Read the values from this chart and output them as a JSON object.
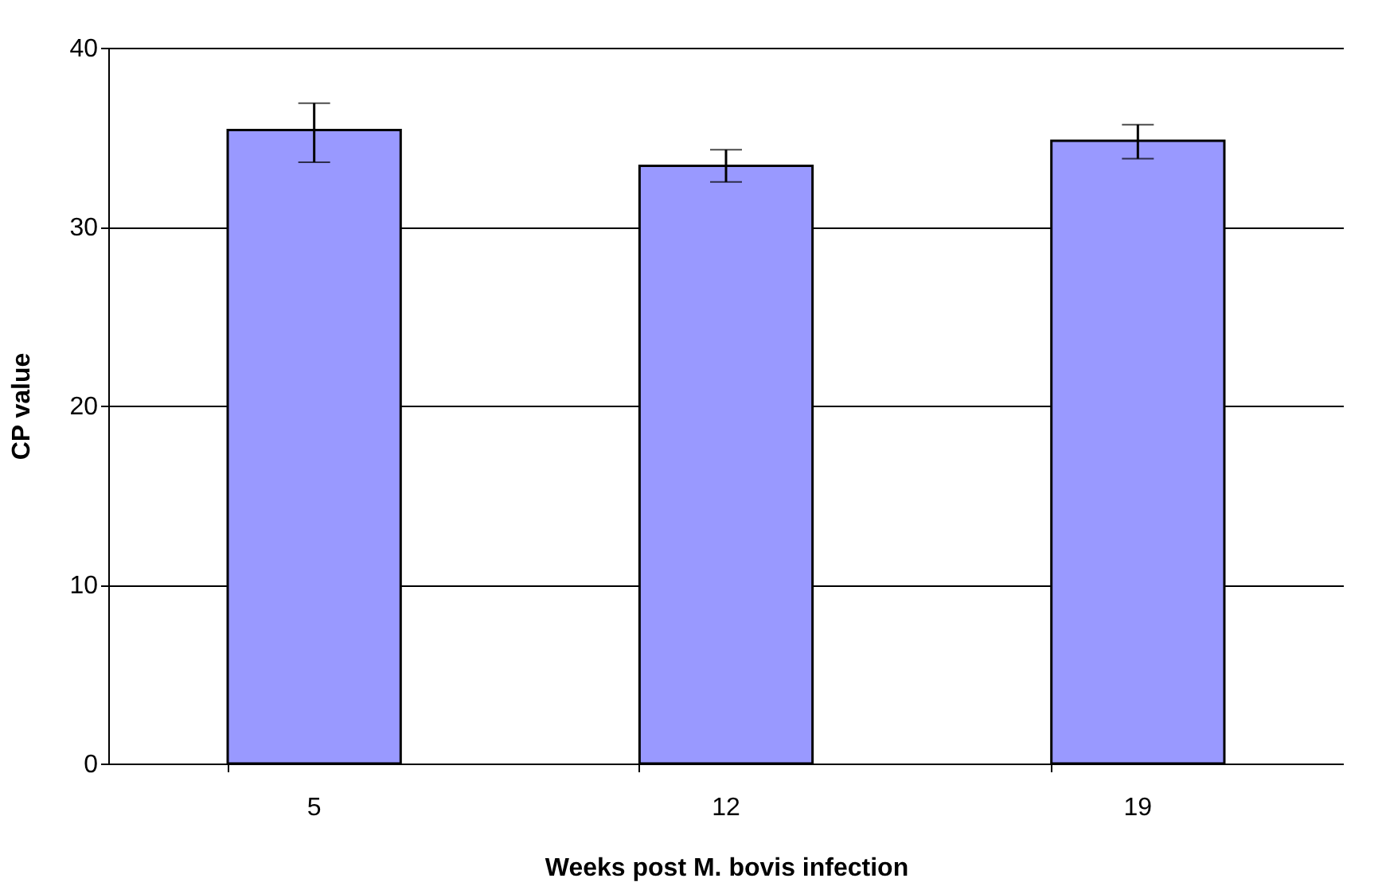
{
  "chart_data": {
    "type": "bar",
    "xlabel": "Weeks post M. bovis infection",
    "ylabel": "CP value",
    "categories": [
      "5",
      "12",
      "19"
    ],
    "values": [
      35.4,
      33.4,
      34.8
    ],
    "errors": [
      [
        33.6,
        36.9
      ],
      [
        32.5,
        34.3
      ],
      [
        33.8,
        35.7
      ]
    ],
    "color": "#9999ff",
    "ylim": [
      0,
      40
    ],
    "yticks": [
      0,
      10,
      20,
      30,
      40
    ],
    "grid": "y"
  }
}
